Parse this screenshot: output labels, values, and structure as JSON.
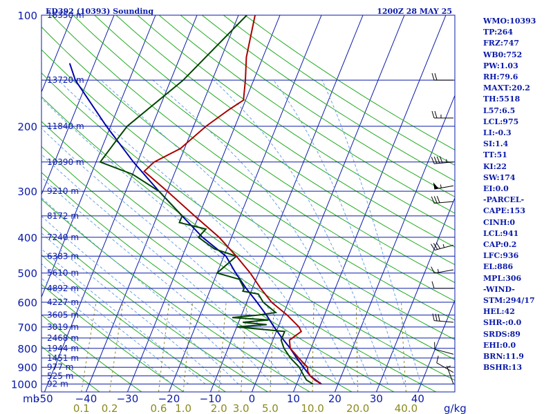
{
  "chart_data": {
    "type": "skew-t",
    "title_left": "ED392 (10393) Sounding",
    "title_right": "1200Z 28 MAY 25",
    "pressure_unit": "mb",
    "mixing_ratio_unit": "g/kg",
    "pressure_ticks": [
      100,
      200,
      300,
      400,
      500,
      600,
      700,
      800,
      900,
      1000
    ],
    "height_levels": [
      {
        "p": 100,
        "label": "16350 m"
      },
      {
        "p": 150,
        "label": "13720 m"
      },
      {
        "p": 200,
        "label": "11840 m"
      },
      {
        "p": 250,
        "label": "10390 m"
      },
      {
        "p": 300,
        "label": "9210 m"
      },
      {
        "p": 350,
        "label": "8172 m"
      },
      {
        "p": 400,
        "label": "7240 m"
      },
      {
        "p": 450,
        "label": "6383 m"
      },
      {
        "p": 500,
        "label": "5610 m"
      },
      {
        "p": 550,
        "label": "4892 m"
      },
      {
        "p": 600,
        "label": "4227 m"
      },
      {
        "p": 650,
        "label": "3605 m"
      },
      {
        "p": 700,
        "label": "3019 m"
      },
      {
        "p": 750,
        "label": "2468 m"
      },
      {
        "p": 800,
        "label": "1944 m"
      },
      {
        "p": 850,
        "label": "1451 m"
      },
      {
        "p": 900,
        "label": "977 m"
      },
      {
        "p": 950,
        "label": "525 m"
      },
      {
        "p": 1000,
        "label": "92 m"
      }
    ],
    "temperature_ticks": [
      -50,
      -40,
      -30,
      -20,
      -10,
      0,
      10,
      20,
      30,
      40
    ],
    "temperature_tick_labels": [
      "-50",
      "−40",
      "−30",
      "−20",
      "−10",
      "0",
      "10",
      "20",
      "30",
      "40"
    ],
    "mixing_ratio_labels": [
      {
        "w": 0.1,
        "label": "0.1"
      },
      {
        "w": 0.2,
        "label": "0.2"
      },
      {
        "w": 0.6,
        "label": "0.6"
      },
      {
        "w": 1.0,
        "label": "1.0"
      },
      {
        "w": 2.0,
        "label": "2.0"
      },
      {
        "w": 3.0,
        "label": "3.0"
      },
      {
        "w": 5.0,
        "label": "5.0"
      },
      {
        "w": 10.0,
        "label": "10.0"
      },
      {
        "w": 20.0,
        "label": "20.0"
      },
      {
        "w": 40.0,
        "label": "40.0"
      }
    ],
    "temperature_profile": [
      {
        "p": 1000,
        "t": 16.0
      },
      {
        "p": 975,
        "t": 14.0
      },
      {
        "p": 950,
        "t": 12.5
      },
      {
        "p": 925,
        "t": 11.5
      },
      {
        "p": 900,
        "t": 11.0
      },
      {
        "p": 850,
        "t": 8.0
      },
      {
        "p": 800,
        "t": 5.0
      },
      {
        "p": 760,
        "t": 4.0
      },
      {
        "p": 720,
        "t": 6.0
      },
      {
        "p": 700,
        "t": 5.0
      },
      {
        "p": 650,
        "t": 1.0
      },
      {
        "p": 600,
        "t": -4.0
      },
      {
        "p": 550,
        "t": -8.0
      },
      {
        "p": 500,
        "t": -12.0
      },
      {
        "p": 450,
        "t": -17.0
      },
      {
        "p": 400,
        "t": -23.0
      },
      {
        "p": 350,
        "t": -31.0
      },
      {
        "p": 300,
        "t": -40.0
      },
      {
        "p": 265,
        "t": -47.5
      },
      {
        "p": 250,
        "t": -46.0
      },
      {
        "p": 230,
        "t": -41.0
      },
      {
        "p": 200,
        "t": -37.0
      },
      {
        "p": 180,
        "t": -33.0
      },
      {
        "p": 170,
        "t": -30.5
      },
      {
        "p": 150,
        "t": -32.0
      },
      {
        "p": 130,
        "t": -34.0
      },
      {
        "p": 100,
        "t": -36.0
      }
    ],
    "dewpoint_profile": [
      {
        "p": 1000,
        "td": 14.0
      },
      {
        "p": 975,
        "td": 12.0
      },
      {
        "p": 950,
        "td": 11.0
      },
      {
        "p": 900,
        "td": 9.0
      },
      {
        "p": 850,
        "td": 6.0
      },
      {
        "p": 800,
        "td": 3.5
      },
      {
        "p": 760,
        "td": 2.0
      },
      {
        "p": 720,
        "td": 2.0
      },
      {
        "p": 700,
        "td": -10.0
      },
      {
        "p": 690,
        "td": -3.0
      },
      {
        "p": 680,
        "td": -9.0
      },
      {
        "p": 670,
        "td": -3.0
      },
      {
        "p": 660,
        "td": -12.0
      },
      {
        "p": 650,
        "td": -6.0
      },
      {
        "p": 640,
        "td": -2.0
      },
      {
        "p": 600,
        "td": -6.0
      },
      {
        "p": 570,
        "td": -8.0
      },
      {
        "p": 560,
        "td": -12.0
      },
      {
        "p": 550,
        "td": -12.0
      },
      {
        "p": 520,
        "td": -14.0
      },
      {
        "p": 500,
        "td": -20.0
      },
      {
        "p": 450,
        "td": -17.0
      },
      {
        "p": 430,
        "td": -23.0
      },
      {
        "p": 400,
        "td": -28.0
      },
      {
        "p": 380,
        "td": -27.0
      },
      {
        "p": 365,
        "td": -34.0
      },
      {
        "p": 350,
        "td": -34.0
      },
      {
        "p": 300,
        "td": -42.0
      },
      {
        "p": 270,
        "td": -50.0
      },
      {
        "p": 250,
        "td": -59.0
      },
      {
        "p": 215,
        "td": -57.0
      },
      {
        "p": 200,
        "td": -56.0
      },
      {
        "p": 150,
        "td": -47.0
      },
      {
        "p": 100,
        "td": -38.0
      }
    ],
    "parcel_profile": [
      {
        "p": 1000,
        "t": 16.0
      },
      {
        "p": 950,
        "t": 12.5
      },
      {
        "p": 900,
        "t": 10.0
      },
      {
        "p": 850,
        "t": 7.5
      },
      {
        "p": 800,
        "t": 5.0
      },
      {
        "p": 750,
        "t": 2.0
      },
      {
        "p": 700,
        "t": -1.0
      },
      {
        "p": 650,
        "t": -4.0
      },
      {
        "p": 600,
        "t": -7.5
      },
      {
        "p": 550,
        "t": -11.5
      },
      {
        "p": 500,
        "t": -15.5
      },
      {
        "p": 450,
        "t": -19.5
      },
      {
        "p": 400,
        "t": -27.0
      },
      {
        "p": 350,
        "t": -34.0
      },
      {
        "p": 300,
        "t": -42.0
      },
      {
        "p": 250,
        "t": -51.0
      },
      {
        "p": 200,
        "t": -61.0
      },
      {
        "p": 150,
        "t": -73.0
      },
      {
        "p": 135,
        "t": -76.0
      }
    ],
    "wind_barbs": [
      {
        "p": 150,
        "dir": 270,
        "spd": 20
      },
      {
        "p": 190,
        "dir": 270,
        "spd": 25
      },
      {
        "p": 250,
        "dir": 265,
        "spd": 45
      },
      {
        "p": 290,
        "dir": 260,
        "spd": 55
      },
      {
        "p": 320,
        "dir": 265,
        "spd": 30
      },
      {
        "p": 420,
        "dir": 255,
        "spd": 35
      },
      {
        "p": 490,
        "dir": 260,
        "spd": 15
      },
      {
        "p": 550,
        "dir": 270,
        "spd": 10
      },
      {
        "p": 680,
        "dir": 275,
        "spd": 30
      },
      {
        "p": 830,
        "dir": 285,
        "spd": 10
      },
      {
        "p": 930,
        "dir": 300,
        "spd": 10
      },
      {
        "p": 1000,
        "dir": 340,
        "spd": 5
      }
    ],
    "colors": {
      "temperature": "#aa0000",
      "dewpoint": "#004400",
      "parcel": "#0000aa",
      "isobar": "#0a1aa8",
      "isotherm": "#0a1aa8",
      "dry_adiabat": "#22aa22",
      "moist_adiabat": "#6aa0e8",
      "mixing_ratio": "#8a8a20"
    }
  },
  "stats": [
    "WMO:10393",
    "TP:264",
    "FRZ:747",
    "WB0:752",
    "PW:1.03",
    "RH:79.6",
    "MAXT:20.2",
    "TH:5518",
    "L57:6.5",
    "LCL:975",
    "LI:-0.3",
    "SI:1.4",
    "TT:51",
    "KI:22",
    "SW:174",
    "EI:0.0",
    "-PARCEL-",
    "CAPE:153",
    "CINH:0",
    "LCL:941",
    "CAP:0.2",
    "LFC:936",
    "EL:886",
    "MPL:306",
    "-WIND-",
    "STM:294/17",
    "HEL:42",
    "SHR-:0.0",
    "SRDS:89",
    "EHI:0.0",
    "BRN:11.9",
    "BSHR:13"
  ]
}
